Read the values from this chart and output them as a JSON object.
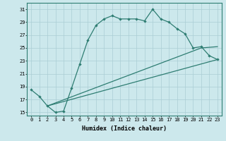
{
  "xlabel": "Humidex (Indice chaleur)",
  "background_color": "#cce8ec",
  "grid_color": "#aacdd4",
  "line_color": "#2e7d72",
  "xlim": [
    -0.5,
    23.5
  ],
  "ylim": [
    14.5,
    32.0
  ],
  "yticks": [
    15,
    17,
    19,
    21,
    23,
    25,
    27,
    29,
    31
  ],
  "xticks": [
    0,
    1,
    2,
    3,
    4,
    5,
    6,
    7,
    8,
    9,
    10,
    11,
    12,
    13,
    14,
    15,
    16,
    17,
    18,
    19,
    20,
    21,
    22,
    23
  ],
  "curve1_x": [
    0,
    1,
    2,
    3,
    4,
    5,
    6,
    7,
    8,
    9,
    10,
    11,
    12,
    13,
    14,
    15,
    16,
    17,
    18,
    19,
    20,
    21,
    22,
    23
  ],
  "curve1_y": [
    18.5,
    17.5,
    16.0,
    15.0,
    15.2,
    18.8,
    22.5,
    26.2,
    28.5,
    29.5,
    30.0,
    29.5,
    29.5,
    29.5,
    29.2,
    31.0,
    29.5,
    29.0,
    28.0,
    27.2,
    25.0,
    25.2,
    23.8,
    23.2
  ],
  "curve2_x": [
    2,
    23
  ],
  "curve2_y": [
    16.0,
    23.2
  ],
  "curve3_x": [
    2,
    21,
    23
  ],
  "curve3_y": [
    16.0,
    25.0,
    25.2
  ]
}
